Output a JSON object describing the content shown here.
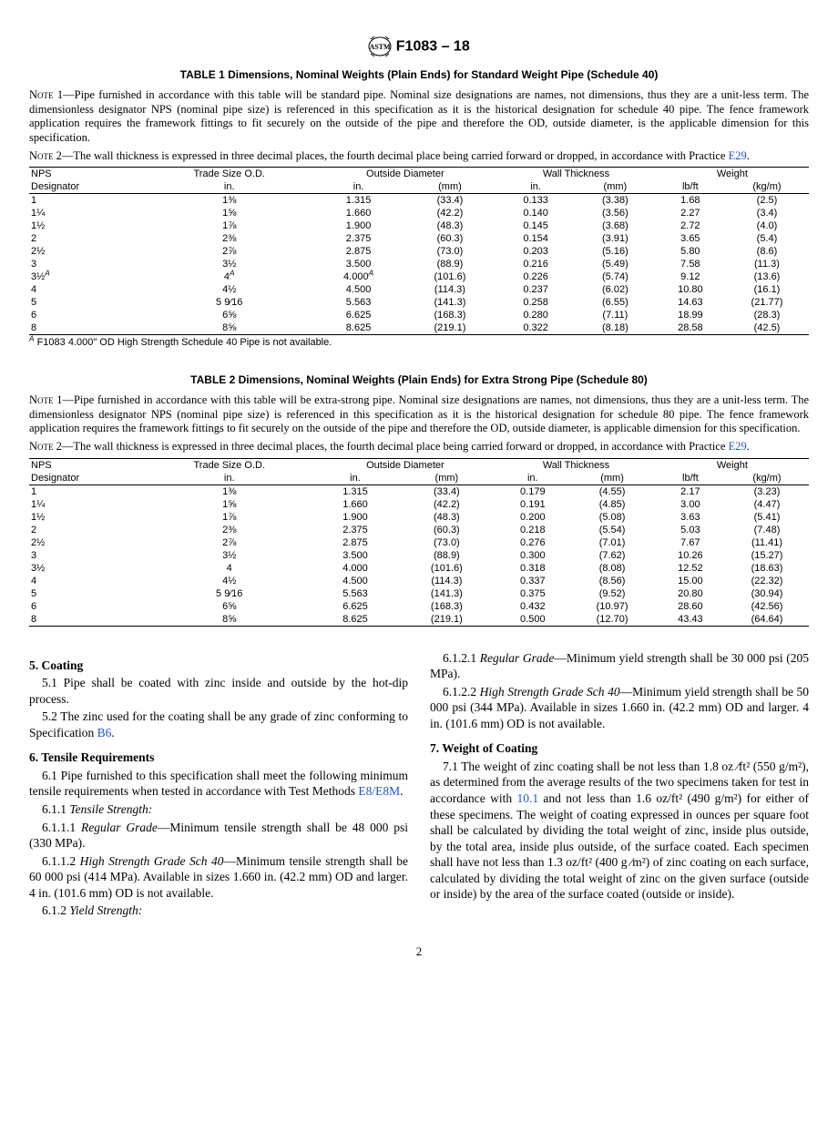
{
  "header": {
    "standard": "F1083 – 18"
  },
  "table1": {
    "title": "TABLE 1 Dimensions, Nominal Weights (Plain Ends) for Standard Weight Pipe (Schedule 40)",
    "note1": "Pipe furnished in accordance with this table will be standard pipe. Nominal size designations are names, not dimensions, thus they are a unit-less term. The dimensionless designator NPS (nominal pipe size) is referenced in this specification as it is the historical designation for schedule 40 pipe. The fence framework application requires the framework fittings to fit securely on the outside of the pipe and therefore the OD, outside diameter, is the applicable dimension for this specification.",
    "note2_a": "The wall thickness is expressed in three decimal places, the fourth decimal place being carried forward or dropped, in accordance with Practice ",
    "note2_link": "E29",
    "headers": {
      "c1": "NPS",
      "c2": "Trade Size O.D.",
      "c3": "Outside Diameter",
      "c4": "Wall Thickness",
      "c5": "Weight",
      "s1": "Designator",
      "s2": "in.",
      "s3": "in.",
      "s4": "(mm)",
      "s5": "in.",
      "s6": "(mm)",
      "s7": "lb/ft",
      "s8": "(kg/m)"
    },
    "rows": [
      {
        "nps": "1",
        "trade": "1⅜",
        "od_in": "1.315",
        "od_mm": "(33.4)",
        "wt_in": "0.133",
        "wt_mm": "(3.38)",
        "w_lb": "1.68",
        "w_kg": "(2.5)"
      },
      {
        "nps": "1¼",
        "trade": "1⅝",
        "od_in": "1.660",
        "od_mm": "(42.2)",
        "wt_in": "0.140",
        "wt_mm": "(3.56)",
        "w_lb": "2.27",
        "w_kg": "(3.4)"
      },
      {
        "nps": "1½",
        "trade": "1⅞",
        "od_in": "1.900",
        "od_mm": "(48.3)",
        "wt_in": "0.145",
        "wt_mm": "(3.68)",
        "w_lb": "2.72",
        "w_kg": "(4.0)"
      },
      {
        "nps": "2",
        "trade": "2⅜",
        "od_in": "2.375",
        "od_mm": "(60.3)",
        "wt_in": "0.154",
        "wt_mm": "(3.91)",
        "w_lb": "3.65",
        "w_kg": "(5.4)"
      },
      {
        "nps": "2½",
        "trade": "2⅞",
        "od_in": "2.875",
        "od_mm": "(73.0)",
        "wt_in": "0.203",
        "wt_mm": "(5.16)",
        "w_lb": "5.80",
        "w_kg": "(8.6)"
      },
      {
        "nps": "3",
        "trade": "3½",
        "od_in": "3.500",
        "od_mm": "(88.9)",
        "wt_in": "0.216",
        "wt_mm": "(5.49)",
        "w_lb": "7.58",
        "w_kg": "(11.3)"
      },
      {
        "nps": "3½",
        "nps_sup": "A",
        "trade": "4",
        "trade_sup": "A",
        "od_in": "4.000",
        "od_sup": "A",
        "od_mm": "(101.6)",
        "wt_in": "0.226",
        "wt_mm": "(5.74)",
        "w_lb": "9.12",
        "w_kg": "(13.6)"
      },
      {
        "nps": "4",
        "trade": "4½",
        "od_in": "4.500",
        "od_mm": "(114.3)",
        "wt_in": "0.237",
        "wt_mm": "(6.02)",
        "w_lb": "10.80",
        "w_kg": "(16.1)"
      },
      {
        "nps": "5",
        "trade": "5 9⁄16",
        "od_in": "5.563",
        "od_mm": "(141.3)",
        "wt_in": "0.258",
        "wt_mm": "(6.55)",
        "w_lb": "14.63",
        "w_kg": "(21.77)"
      },
      {
        "nps": "6",
        "trade": "6⅝",
        "od_in": "6.625",
        "od_mm": "(168.3)",
        "wt_in": "0.280",
        "wt_mm": "(7.11)",
        "w_lb": "18.99",
        "w_kg": "(28.3)"
      },
      {
        "nps": "8",
        "trade": "8⅝",
        "od_in": "8.625",
        "od_mm": "(219.1)",
        "wt_in": "0.322",
        "wt_mm": "(8.18)",
        "w_lb": "28.58",
        "w_kg": "(42.5)"
      }
    ],
    "footnote": "F1083 4.000\" OD High Strength Schedule 40 Pipe is not available."
  },
  "table2": {
    "title": "TABLE 2 Dimensions, Nominal Weights (Plain Ends) for Extra Strong Pipe (Schedule 80)",
    "note1": "Pipe furnished in accordance with this table will be extra-strong pipe. Nominal size designations are names, not dimensions, thus they are a unit-less term. The dimensionless designator NPS (nominal pipe size) is referenced in this specification as it is the historical designation for schedule 80 pipe. The fence framework application requires the framework fittings to fit securely on the outside of the pipe and therefore the OD, outside diameter, is applicable dimension for this specification.",
    "note2_a": "The wall thickness is expressed in three decimal places, the fourth decimal place being carried forward or dropped, in accordance with Practice ",
    "note2_link": "E29",
    "rows": [
      {
        "nps": "1",
        "trade": "1⅜",
        "od_in": "1.315",
        "od_mm": "(33.4)",
        "wt_in": "0.179",
        "wt_mm": "(4.55)",
        "w_lb": "2.17",
        "w_kg": "(3.23)"
      },
      {
        "nps": "1¼",
        "trade": "1⅝",
        "od_in": "1.660",
        "od_mm": "(42.2)",
        "wt_in": "0.191",
        "wt_mm": "(4.85)",
        "w_lb": "3.00",
        "w_kg": "(4.47)"
      },
      {
        "nps": "1½",
        "trade": "1⅞",
        "od_in": "1.900",
        "od_mm": "(48.3)",
        "wt_in": "0.200",
        "wt_mm": "(5.08)",
        "w_lb": "3.63",
        "w_kg": "(5.41)"
      },
      {
        "nps": "2",
        "trade": "2⅜",
        "od_in": "2.375",
        "od_mm": "(60.3)",
        "wt_in": "0.218",
        "wt_mm": "(5.54)",
        "w_lb": "5.03",
        "w_kg": "(7.48)"
      },
      {
        "nps": "2½",
        "trade": "2⅞",
        "od_in": "2.875",
        "od_mm": "(73.0)",
        "wt_in": "0.276",
        "wt_mm": "(7.01)",
        "w_lb": "7.67",
        "w_kg": "(11.41)"
      },
      {
        "nps": "3",
        "trade": "3½",
        "od_in": "3.500",
        "od_mm": "(88.9)",
        "wt_in": "0.300",
        "wt_mm": "(7.62)",
        "w_lb": "10.26",
        "w_kg": "(15.27)"
      },
      {
        "nps": "3½",
        "trade": "4",
        "od_in": "4.000",
        "od_mm": "(101.6)",
        "wt_in": "0.318",
        "wt_mm": "(8.08)",
        "w_lb": "12.52",
        "w_kg": "(18.63)"
      },
      {
        "nps": "4",
        "trade": "4½",
        "od_in": "4.500",
        "od_mm": "(114.3)",
        "wt_in": "0.337",
        "wt_mm": "(8.56)",
        "w_lb": "15.00",
        "w_kg": "(22.32)"
      },
      {
        "nps": "5",
        "trade": "5 9⁄16",
        "od_in": "5.563",
        "od_mm": "(141.3)",
        "wt_in": "0.375",
        "wt_mm": "(9.52)",
        "w_lb": "20.80",
        "w_kg": "(30.94)"
      },
      {
        "nps": "6",
        "trade": "6⅝",
        "od_in": "6.625",
        "od_mm": "(168.3)",
        "wt_in": "0.432",
        "wt_mm": "(10.97)",
        "w_lb": "28.60",
        "w_kg": "(42.56)"
      },
      {
        "nps": "8",
        "trade": "8⅝",
        "od_in": "8.625",
        "od_mm": "(219.1)",
        "wt_in": "0.500",
        "wt_mm": "(12.70)",
        "w_lb": "43.43",
        "w_kg": "(64.64)"
      }
    ]
  },
  "body": {
    "s5_head": "5.  Coating",
    "s5_1": "5.1 Pipe shall be coated with zinc inside and outside by the hot-dip process.",
    "s5_2a": "5.2 The zinc used for the coating shall be any grade of zinc conforming to Specification ",
    "s5_2link": "B6",
    "s6_head": "6.  Tensile Requirements",
    "s6_1a": "6.1 Pipe furnished to this specification shall meet the following minimum tensile requirements when tested in accordance with Test Methods ",
    "s6_1link": "E8/E8M",
    "s6_1_1": "6.1.1 Tensile Strength:",
    "s6_1_1_1": "6.1.1.1 Regular Grade—Minimum tensile strength shall be 48 000 psi (330 MPa).",
    "s6_1_1_2": "6.1.1.2 High Strength Grade Sch 40—Minimum tensile strength shall be 60 000 psi (414 MPa). Available in sizes 1.660 in. (42.2 mm) OD and larger. 4 in. (101.6 mm) OD is not available.",
    "s6_1_2": "6.1.2 Yield Strength:",
    "s6_1_2_1": "6.1.2.1 Regular Grade—Minimum yield strength shall be 30 000 psi (205 MPa).",
    "s6_1_2_2": "6.1.2.2 High Strength Grade Sch 40—Minimum yield strength shall be 50 000 psi (344 MPa). Available in sizes 1.660 in. (42.2 mm) OD and larger. 4 in. (101.6 mm) OD is not available.",
    "s7_head": "7.  Weight of Coating",
    "s7_1a": "7.1 The weight of zinc coating shall be not less than 1.8 oz ⁄ft² (550 g/m²), as determined from the average results of the two specimens taken for test in accordance with ",
    "s7_1link": "10.1",
    "s7_1b": " and not less than 1.6 oz/ft² (490 g/m²) for either of these specimens. The weight of coating expressed in ounces per square foot shall be calculated by dividing the total weight of zinc, inside plus outside, by the total area, inside plus outside, of the surface coated. Each specimen shall have not less than 1.3 oz/ft² (400 g ⁄m²) of zinc coating on each surface, calculated by dividing the total weight of zinc on the given surface (outside or inside) by the area of the surface coated (outside or inside)."
  },
  "pagenum": "2"
}
